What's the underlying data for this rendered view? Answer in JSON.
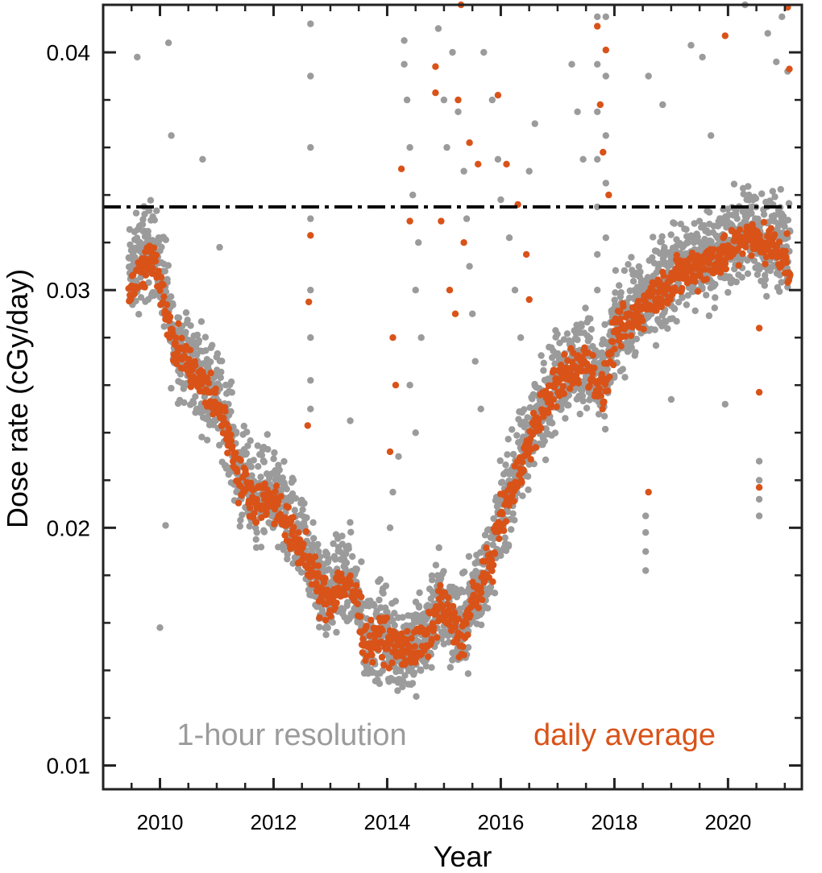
{
  "chart_data": {
    "type": "scatter",
    "xlabel": "Year",
    "ylabel": "Dose rate (cGy/day)",
    "xlim": [
      2009.0,
      2021.3
    ],
    "ylim": [
      0.009,
      0.042
    ],
    "x_ticks": [
      2010,
      2012,
      2014,
      2016,
      2018,
      2020
    ],
    "x_tick_labels": [
      "2010",
      "2012",
      "2014",
      "2016",
      "2018",
      "2020"
    ],
    "y_ticks": [
      0.01,
      0.02,
      0.03,
      0.04
    ],
    "y_tick_labels": [
      "0.01",
      "0.02",
      "0.03",
      "0.04"
    ],
    "y_minor_step": 0.002,
    "grid": false,
    "reference_line": {
      "y": 0.0335,
      "style": "dash-dot",
      "color": "#000000"
    },
    "annotations": [
      {
        "text": "1-hour resolution",
        "color": "#9b9b9b"
      },
      {
        "text": "daily average",
        "color": "#d95319"
      }
    ],
    "series": [
      {
        "color": "#9b9b9b",
        "kind": "1-hour",
        "trend": [
          [
            2009.45,
            0.0305
          ],
          [
            2009.7,
            0.0315
          ],
          [
            2009.9,
            0.0318
          ],
          [
            2010.05,
            0.0306
          ],
          [
            2010.2,
            0.0282
          ],
          [
            2010.5,
            0.027
          ],
          [
            2010.8,
            0.0262
          ],
          [
            2011.0,
            0.0255
          ],
          [
            2011.2,
            0.0245
          ],
          [
            2011.4,
            0.0222
          ],
          [
            2011.7,
            0.0213
          ],
          [
            2012.0,
            0.0214
          ],
          [
            2012.3,
            0.02
          ],
          [
            2012.6,
            0.0188
          ],
          [
            2012.8,
            0.0176
          ],
          [
            2013.0,
            0.0172
          ],
          [
            2013.2,
            0.018
          ],
          [
            2013.45,
            0.0174
          ],
          [
            2013.6,
            0.0153
          ],
          [
            2013.9,
            0.0156
          ],
          [
            2014.2,
            0.015
          ],
          [
            2014.5,
            0.015
          ],
          [
            2014.7,
            0.0154
          ],
          [
            2014.9,
            0.017
          ],
          [
            2015.1,
            0.0165
          ],
          [
            2015.3,
            0.0155
          ],
          [
            2015.5,
            0.017
          ],
          [
            2015.8,
            0.0185
          ],
          [
            2016.0,
            0.0205
          ],
          [
            2016.3,
            0.0225
          ],
          [
            2016.6,
            0.0245
          ],
          [
            2016.9,
            0.026
          ],
          [
            2017.2,
            0.0268
          ],
          [
            2017.5,
            0.0272
          ],
          [
            2017.8,
            0.0258
          ],
          [
            2018.0,
            0.0282
          ],
          [
            2018.4,
            0.0292
          ],
          [
            2018.8,
            0.0302
          ],
          [
            2019.2,
            0.031
          ],
          [
            2019.6,
            0.0314
          ],
          [
            2020.0,
            0.0318
          ],
          [
            2020.3,
            0.0325
          ],
          [
            2020.6,
            0.0322
          ],
          [
            2020.9,
            0.032
          ],
          [
            2021.1,
            0.031
          ]
        ],
        "spread": 0.0018,
        "outliers": [
          [
            2009.6,
            0.0398
          ],
          [
            2010.15,
            0.0404
          ],
          [
            2010.2,
            0.0365
          ],
          [
            2010.0,
            0.0158
          ],
          [
            2010.1,
            0.0201
          ],
          [
            2010.75,
            0.0355
          ],
          [
            2011.05,
            0.0318
          ],
          [
            2012.65,
            0.0412
          ],
          [
            2012.65,
            0.039
          ],
          [
            2012.65,
            0.036
          ],
          [
            2012.65,
            0.033
          ],
          [
            2012.65,
            0.03
          ],
          [
            2012.65,
            0.028
          ],
          [
            2012.65,
            0.0262
          ],
          [
            2012.65,
            0.025
          ],
          [
            2013.35,
            0.0245
          ],
          [
            2014.3,
            0.0405
          ],
          [
            2014.35,
            0.038
          ],
          [
            2014.4,
            0.036
          ],
          [
            2014.45,
            0.034
          ],
          [
            2014.55,
            0.032
          ],
          [
            2014.5,
            0.03
          ],
          [
            2014.6,
            0.028
          ],
          [
            2014.4,
            0.026
          ],
          [
            2014.5,
            0.024
          ],
          [
            2014.2,
            0.023
          ],
          [
            2014.1,
            0.0215
          ],
          [
            2014.05,
            0.02
          ],
          [
            2014.3,
            0.0395
          ],
          [
            2014.9,
            0.041
          ],
          [
            2015.0,
            0.038
          ],
          [
            2015.05,
            0.036
          ],
          [
            2015.15,
            0.04
          ],
          [
            2015.25,
            0.0375
          ],
          [
            2015.35,
            0.035
          ],
          [
            2015.4,
            0.033
          ],
          [
            2015.45,
            0.031
          ],
          [
            2015.5,
            0.029
          ],
          [
            2015.55,
            0.027
          ],
          [
            2015.65,
            0.025
          ],
          [
            2015.7,
            0.04
          ],
          [
            2015.85,
            0.038
          ],
          [
            2015.95,
            0.0355
          ],
          [
            2016.0,
            0.0338
          ],
          [
            2016.15,
            0.0322
          ],
          [
            2016.25,
            0.03
          ],
          [
            2016.35,
            0.028
          ],
          [
            2016.5,
            0.035
          ],
          [
            2016.6,
            0.037
          ],
          [
            2017.25,
            0.0395
          ],
          [
            2017.35,
            0.0375
          ],
          [
            2017.45,
            0.0355
          ],
          [
            2017.7,
            0.0415
          ],
          [
            2017.7,
            0.0395
          ],
          [
            2017.7,
            0.0375
          ],
          [
            2017.7,
            0.0355
          ],
          [
            2017.7,
            0.0335
          ],
          [
            2017.7,
            0.0315
          ],
          [
            2017.7,
            0.03
          ],
          [
            2017.85,
            0.0415
          ],
          [
            2017.85,
            0.039
          ],
          [
            2017.85,
            0.0365
          ],
          [
            2017.85,
            0.0345
          ],
          [
            2017.85,
            0.0322
          ],
          [
            2018.55,
            0.0205
          ],
          [
            2018.55,
            0.0198
          ],
          [
            2018.55,
            0.019
          ],
          [
            2018.55,
            0.0182
          ],
          [
            2018.6,
            0.039
          ],
          [
            2018.85,
            0.0378
          ],
          [
            2019.0,
            0.0254
          ],
          [
            2019.35,
            0.0403
          ],
          [
            2019.55,
            0.0398
          ],
          [
            2019.7,
            0.0365
          ],
          [
            2019.95,
            0.0252
          ],
          [
            2020.3,
            0.042
          ],
          [
            2020.55,
            0.0228
          ],
          [
            2020.55,
            0.022
          ],
          [
            2020.55,
            0.0212
          ],
          [
            2020.55,
            0.0205
          ],
          [
            2020.7,
            0.0408
          ],
          [
            2020.85,
            0.0396
          ],
          [
            2020.95,
            0.0415
          ],
          [
            2021.05,
            0.0392
          ]
        ]
      },
      {
        "color": "#d95319",
        "kind": "daily",
        "trend": [
          [
            2009.45,
            0.03
          ],
          [
            2009.7,
            0.0308
          ],
          [
            2009.9,
            0.0314
          ],
          [
            2010.05,
            0.03
          ],
          [
            2010.2,
            0.0279
          ],
          [
            2010.5,
            0.0268
          ],
          [
            2010.8,
            0.0258
          ],
          [
            2011.0,
            0.0252
          ],
          [
            2011.2,
            0.024
          ],
          [
            2011.4,
            0.022
          ],
          [
            2011.7,
            0.0211
          ],
          [
            2012.0,
            0.0212
          ],
          [
            2012.3,
            0.0198
          ],
          [
            2012.6,
            0.0186
          ],
          [
            2012.8,
            0.0173
          ],
          [
            2013.0,
            0.017
          ],
          [
            2013.2,
            0.0178
          ],
          [
            2013.45,
            0.0172
          ],
          [
            2013.6,
            0.0152
          ],
          [
            2013.9,
            0.0154
          ],
          [
            2014.2,
            0.0149
          ],
          [
            2014.5,
            0.0149
          ],
          [
            2014.7,
            0.0152
          ],
          [
            2014.9,
            0.0168
          ],
          [
            2015.1,
            0.0163
          ],
          [
            2015.3,
            0.0152
          ],
          [
            2015.5,
            0.0168
          ],
          [
            2015.8,
            0.0184
          ],
          [
            2016.0,
            0.0203
          ],
          [
            2016.3,
            0.0222
          ],
          [
            2016.6,
            0.0242
          ],
          [
            2016.9,
            0.0257
          ],
          [
            2017.2,
            0.0266
          ],
          [
            2017.5,
            0.027
          ],
          [
            2017.8,
            0.0255
          ],
          [
            2018.0,
            0.028
          ],
          [
            2018.4,
            0.029
          ],
          [
            2018.8,
            0.03
          ],
          [
            2019.2,
            0.0307
          ],
          [
            2019.6,
            0.0312
          ],
          [
            2020.0,
            0.0316
          ],
          [
            2020.3,
            0.0322
          ],
          [
            2020.6,
            0.032
          ],
          [
            2020.9,
            0.0318
          ],
          [
            2021.1,
            0.0308
          ]
        ],
        "spread": 0.0008,
        "outliers": [
          [
            2012.65,
            0.0323
          ],
          [
            2012.62,
            0.0295
          ],
          [
            2012.6,
            0.0243
          ],
          [
            2014.25,
            0.0351
          ],
          [
            2014.4,
            0.0329
          ],
          [
            2014.1,
            0.028
          ],
          [
            2014.15,
            0.026
          ],
          [
            2014.05,
            0.0232
          ],
          [
            2014.85,
            0.0394
          ],
          [
            2014.85,
            0.0383
          ],
          [
            2014.95,
            0.0329
          ],
          [
            2015.1,
            0.03
          ],
          [
            2015.2,
            0.029
          ],
          [
            2015.25,
            0.038
          ],
          [
            2015.3,
            0.042
          ],
          [
            2015.45,
            0.0362
          ],
          [
            2015.6,
            0.0353
          ],
          [
            2015.35,
            0.032
          ],
          [
            2015.95,
            0.0382
          ],
          [
            2016.1,
            0.0353
          ],
          [
            2016.3,
            0.0336
          ],
          [
            2016.5,
            0.0296
          ],
          [
            2016.45,
            0.0315
          ],
          [
            2017.7,
            0.0411
          ],
          [
            2017.75,
            0.0378
          ],
          [
            2017.8,
            0.0358
          ],
          [
            2017.85,
            0.0401
          ],
          [
            2017.9,
            0.034
          ],
          [
            2018.6,
            0.0215
          ],
          [
            2019.95,
            0.0407
          ],
          [
            2020.55,
            0.0284
          ],
          [
            2020.55,
            0.0257
          ],
          [
            2020.55,
            0.0217
          ],
          [
            2021.05,
            0.0419
          ],
          [
            2021.08,
            0.0393
          ]
        ]
      }
    ]
  }
}
